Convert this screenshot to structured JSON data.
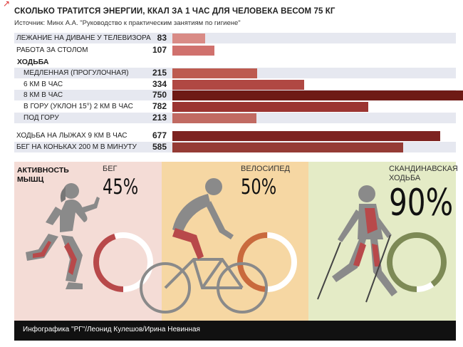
{
  "corner_mark": "↗",
  "title": "СКОЛЬКО ТРАТИТСЯ ЭНЕРГИИ, ККАЛ ЗА 1 ЧАС ДЛЯ ЧЕЛОВЕКА ВЕСОМ 75 КГ",
  "source": "Источник: Минх А.А. \"Руководство к практическим занятиям по гигиене\"",
  "section_walking": "ХОДЬБА",
  "muscle_activity": {
    "line1": "АКТИВНОСТЬ",
    "line2": "МЫШЦ"
  },
  "panels": [
    {
      "label": "БЕГ",
      "percent": "45%",
      "value": 45,
      "bg": "#f4dcd6",
      "ring": "#b8494a"
    },
    {
      "label": "ВЕЛОСИПЕД",
      "percent": "50%",
      "value": 50,
      "bg": "#f6d7a3",
      "ring": "#c96a3d"
    },
    {
      "label_line1": "СКАНДИНАВСКАЯ",
      "label_line2": "ХОДЬБА",
      "percent": "90%",
      "value": 90,
      "bg": "#e4ebc6",
      "ring": "#7d8a55"
    }
  ],
  "footer": "Инфографика \"РГ\"/Леонид Кулешов/Ирина Невинная",
  "chart_data": {
    "type": "bar",
    "orientation": "horizontal",
    "title": "СКОЛЬКО ТРАТИТСЯ ЭНЕРГИИ, ККАЛ ЗА 1 ЧАС ДЛЯ ЧЕЛОВЕКА ВЕСОМ 75 КГ",
    "xlim": [
      0,
      750
    ],
    "categories": [
      "ЛЕЖАНИЕ НА ДИВАНЕ У ТЕЛЕВИЗОРА",
      "РАБОТА ЗА СТОЛОМ",
      "МЕДЛЕННАЯ (ПРОГУЛОЧНАЯ)",
      "6 КМ В ЧАС",
      "8 КМ В ЧАС",
      "В ГОРУ (УКЛОН 15°) 2 КМ В ЧАС",
      "ПОД ГОРУ",
      "ХОДЬБА НА ЛЫЖАХ 9 КМ В ЧАС",
      "БЕГ НА КОНЬКАХ 200 М В МИНУТУ"
    ],
    "values": [
      83,
      107,
      215,
      334,
      750,
      782,
      213,
      677,
      585
    ],
    "value_labels": [
      "83",
      "107",
      "215",
      "334",
      "750",
      "782",
      "213",
      "677",
      "585"
    ],
    "colors": [
      "#d98b86",
      "#d0716d",
      "#bd5a4f",
      "#b04843",
      "#6e1a15",
      "#9b3431",
      "#c16a62",
      "#7d2321",
      "#953b35"
    ],
    "muscle_activity": [
      {
        "name": "БЕГ",
        "value": 45
      },
      {
        "name": "ВЕЛОСИПЕД",
        "value": 50
      },
      {
        "name": "СКАНДИНАВСКАЯ ХОДЬБА",
        "value": 90
      }
    ]
  }
}
